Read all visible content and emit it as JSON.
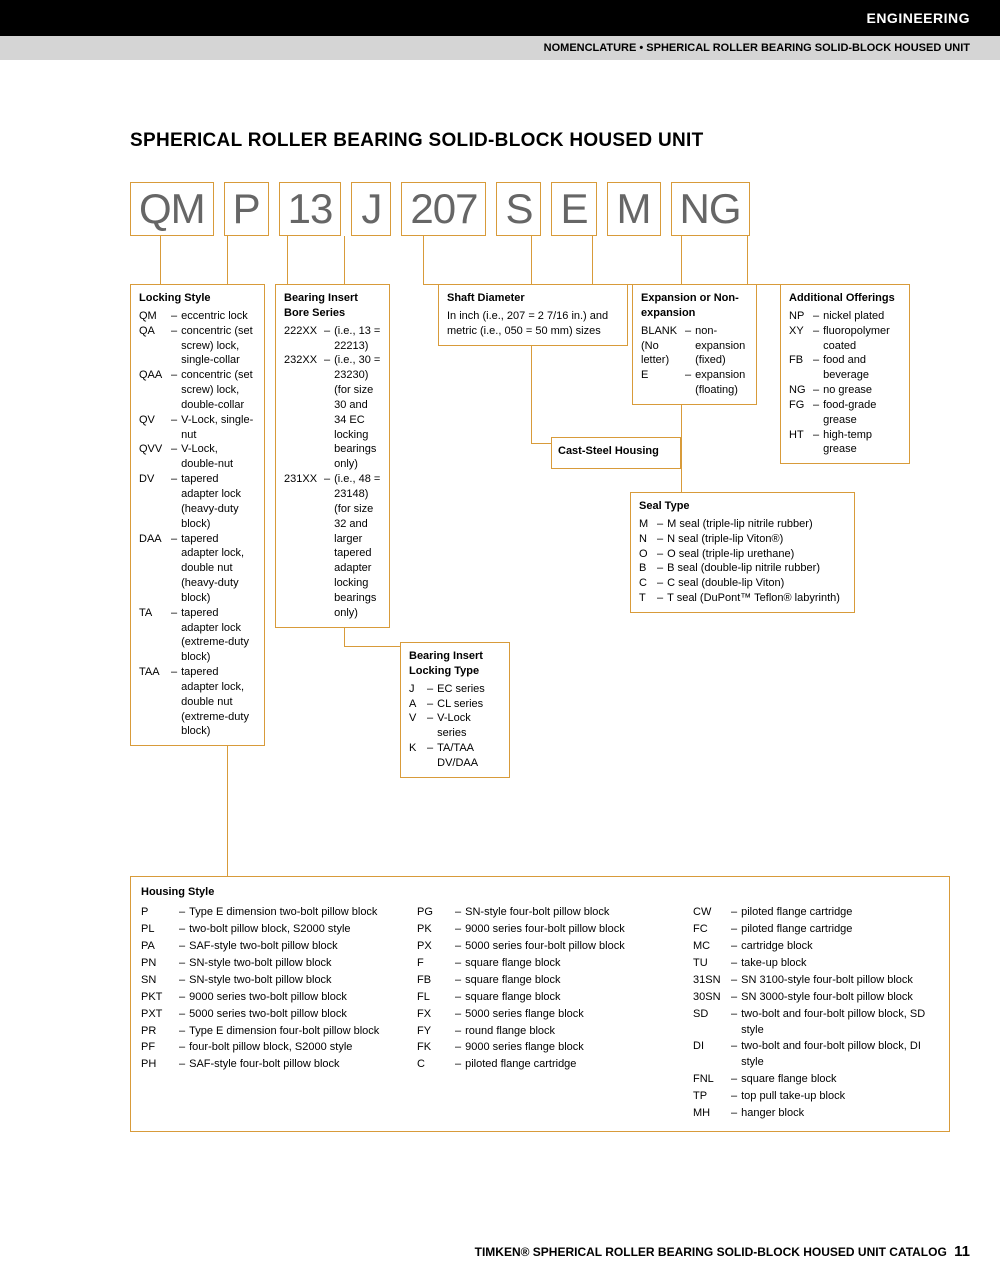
{
  "header": {
    "category": "ENGINEERING",
    "subtitle": "NOMENCLATURE • SPHERICAL ROLLER BEARING SOLID-BLOCK HOUSED UNIT"
  },
  "main_title": "SPHERICAL ROLLER BEARING SOLID-BLOCK HOUSED UNIT",
  "code_parts": [
    "QM",
    "P",
    "13",
    "J",
    "207",
    "S",
    "E",
    "M",
    "NG"
  ],
  "colors": {
    "accent": "#d89b3a",
    "code_text": "#666666",
    "black": "#000000",
    "gray_bar": "#d5d5d5"
  },
  "locking_style": {
    "title": "Locking Style",
    "items": [
      {
        "k": "QM",
        "v": "eccentric lock"
      },
      {
        "k": "QA",
        "v": "concentric (set screw) lock, single-collar"
      },
      {
        "k": "QAA",
        "v": "concentric (set screw) lock, double-collar"
      },
      {
        "k": "QV",
        "v": "V-Lock, single-nut"
      },
      {
        "k": "QVV",
        "v": "V-Lock, double-nut"
      },
      {
        "k": "DV",
        "v": "tapered adapter lock (heavy-duty block)"
      },
      {
        "k": "DAA",
        "v": "tapered adapter lock, double nut (heavy-duty block)"
      },
      {
        "k": "TA",
        "v": "tapered adapter lock (extreme-duty block)"
      },
      {
        "k": "TAA",
        "v": "tapered adapter lock, double nut (extreme-duty block)"
      }
    ]
  },
  "bore_series": {
    "title": "Bearing Insert Bore Series",
    "items": [
      {
        "k": "222XX",
        "v": "(i.e., 13 = 22213)"
      },
      {
        "k": "232XX",
        "v": "(i.e., 30 = 23230) (for size 30 and 34 EC locking bearings only)"
      },
      {
        "k": "231XX",
        "v": "(i.e., 48 = 23148) (for size 32 and larger tapered adapter locking bearings only)"
      }
    ]
  },
  "locking_type": {
    "title": "Bearing Insert Locking Type",
    "items": [
      {
        "k": "J",
        "v": "EC series"
      },
      {
        "k": "A",
        "v": "CL series"
      },
      {
        "k": "V",
        "v": "V-Lock series"
      },
      {
        "k": "K",
        "v": "TA/TAA DV/DAA"
      }
    ]
  },
  "shaft_diameter": {
    "title": "Shaft Diameter",
    "text": "In inch (i.e., 207 = 2 7/16 in.) and metric (i.e., 050 = 50 mm) sizes"
  },
  "cast_steel": {
    "title": "Cast-Steel Housing"
  },
  "expansion": {
    "title": "Expansion or Non-expansion",
    "items": [
      {
        "k": "BLANK (No letter)",
        "v": "non-expansion (fixed)"
      },
      {
        "k": "E",
        "v": "expansion (floating)"
      }
    ]
  },
  "seal_type": {
    "title": "Seal Type",
    "items": [
      {
        "k": "M",
        "v": "M seal (triple-lip nitrile rubber)"
      },
      {
        "k": "N",
        "v": "N seal (triple-lip Viton®)"
      },
      {
        "k": "O",
        "v": "O seal (triple-lip urethane)"
      },
      {
        "k": "B",
        "v": "B seal (double-lip nitrile rubber)"
      },
      {
        "k": "C",
        "v": "C seal (double-lip Viton)"
      },
      {
        "k": "T",
        "v": "T seal (DuPont™ Teflon® labyrinth)"
      }
    ]
  },
  "additional": {
    "title": "Additional Offerings",
    "items": [
      {
        "k": "NP",
        "v": "nickel plated"
      },
      {
        "k": "XY",
        "v": "fluoropolymer coated"
      },
      {
        "k": "FB",
        "v": "food and beverage"
      },
      {
        "k": "NG",
        "v": "no grease"
      },
      {
        "k": "FG",
        "v": "food-grade grease"
      },
      {
        "k": "HT",
        "v": "high-temp grease"
      }
    ]
  },
  "housing_style": {
    "title": "Housing Style",
    "cols": [
      [
        {
          "k": "P",
          "v": "Type E dimension two-bolt pillow block"
        },
        {
          "k": "PL",
          "v": "two-bolt pillow block, S2000 style"
        },
        {
          "k": "PA",
          "v": "SAF-style two-bolt pillow block"
        },
        {
          "k": "PN",
          "v": "SN-style two-bolt pillow block"
        },
        {
          "k": "SN",
          "v": "SN-style two-bolt pillow block"
        },
        {
          "k": "PKT",
          "v": "9000 series two-bolt pillow block"
        },
        {
          "k": "PXT",
          "v": "5000 series two-bolt pillow block"
        },
        {
          "k": "PR",
          "v": "Type E dimension four-bolt pillow block"
        },
        {
          "k": "PF",
          "v": "four-bolt pillow block, S2000 style"
        },
        {
          "k": "PH",
          "v": "SAF-style four-bolt pillow block"
        }
      ],
      [
        {
          "k": "PG",
          "v": "SN-style four-bolt pillow block"
        },
        {
          "k": "PK",
          "v": "9000 series four-bolt pillow block"
        },
        {
          "k": "PX",
          "v": "5000 series four-bolt pillow block"
        },
        {
          "k": "F",
          "v": "square flange block"
        },
        {
          "k": "FB",
          "v": "square flange block"
        },
        {
          "k": "FL",
          "v": "square flange block"
        },
        {
          "k": "FX",
          "v": "5000 series flange block"
        },
        {
          "k": "FY",
          "v": "round flange block"
        },
        {
          "k": "FK",
          "v": "9000 series flange block"
        },
        {
          "k": "C",
          "v": "piloted flange cartridge"
        }
      ],
      [
        {
          "k": "CW",
          "v": "piloted flange cartridge"
        },
        {
          "k": "FC",
          "v": "piloted flange cartridge"
        },
        {
          "k": "MC",
          "v": "cartridge block"
        },
        {
          "k": "TU",
          "v": "take-up block"
        },
        {
          "k": "31SN",
          "v": "SN 3100-style four-bolt pillow block"
        },
        {
          "k": "30SN",
          "v": "SN 3000-style four-bolt pillow block"
        },
        {
          "k": "SD",
          "v": "two-bolt and four-bolt pillow block, SD style"
        },
        {
          "k": "DI",
          "v": "two-bolt and four-bolt pillow block, DI style"
        },
        {
          "k": "FNL",
          "v": "square flange block"
        },
        {
          "k": "TP",
          "v": "top pull take-up block"
        },
        {
          "k": "MH",
          "v": "hanger block"
        }
      ]
    ]
  },
  "footer": {
    "text": "TIMKEN® SPHERICAL ROLLER BEARING SOLID-BLOCK HOUSED UNIT CATALOG",
    "page": "11"
  }
}
